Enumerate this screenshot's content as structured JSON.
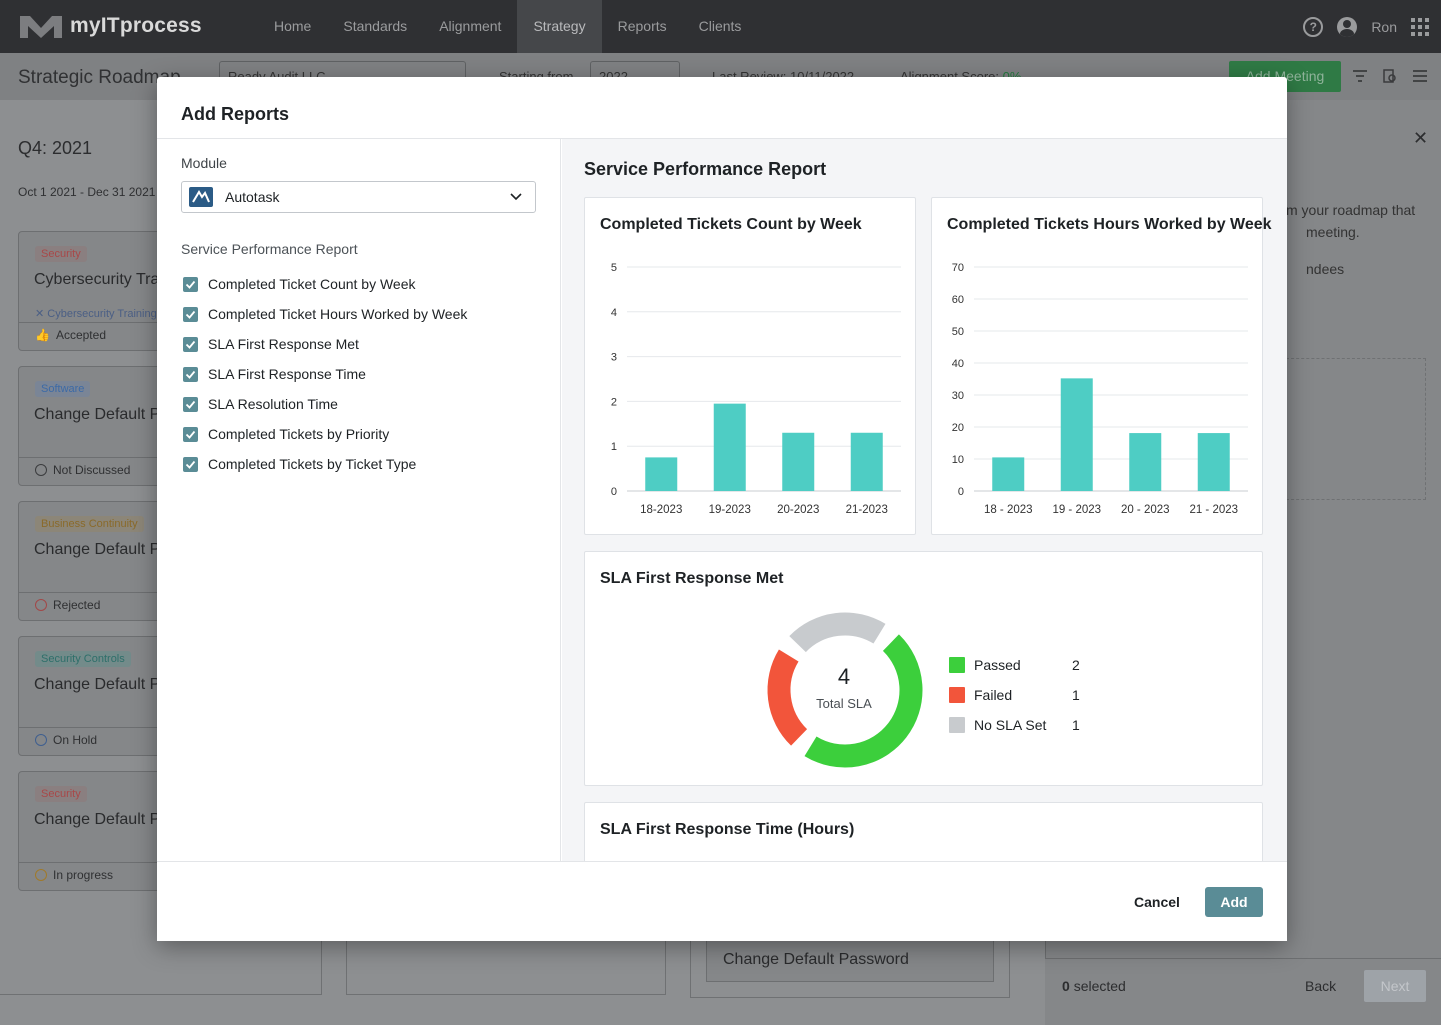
{
  "app": {
    "logo_text": "myITprocess",
    "nav": [
      "Home",
      "Standards",
      "Alignment",
      "Strategy",
      "Reports",
      "Clients"
    ],
    "active_nav": "Strategy",
    "user_name": "Ron"
  },
  "subheader": {
    "title": "Strategic Roadmap",
    "client": "Ready Audit LLC",
    "starting_from_label": "Starting from",
    "starting_from": "2022",
    "last_review": "Last Review: 10/11/2022",
    "alignment_label": "Alignment Score:",
    "alignment_value": "0%",
    "add_meeting": "Add Meeting"
  },
  "board": {
    "quarter": "Q4: 2021",
    "date_range": "Oct 1 2021 - Dec 31 2021",
    "cards": [
      {
        "tag": "Security",
        "tag_color": "#b55a5a",
        "title": "Cybersecurity Training",
        "sub": "Cybersecurity Training",
        "status": "Accepted",
        "status_color": "#4b6a9c"
      },
      {
        "tag": "Software",
        "tag_color": "#4e7ab0",
        "title": "Change Default Password",
        "sub": "",
        "status": "Not Discussed",
        "status_color": "#3b3c3e"
      },
      {
        "tag": "Business Continuity",
        "tag_color": "#9b7d3b",
        "title": "Change Default Password",
        "sub": "",
        "status": "Rejected",
        "status_color": "#a24848"
      },
      {
        "tag": "Security Controls",
        "tag_color": "#3b8a86",
        "title": "Change Default Password",
        "sub": "",
        "status": "On Hold",
        "status_color": "#3f5f8f"
      },
      {
        "tag": "Security",
        "tag_color": "#b55a5a",
        "title": "Change Default Password",
        "sub": "",
        "status": "In progress",
        "status_color": "#a07a2a"
      }
    ],
    "bottom_card": "Change Default Password"
  },
  "side_panel": {
    "text1": "m your roadmap that",
    "text2": "meeting.",
    "text3": "ndees",
    "selected": "0 selected",
    "selected_count": "0",
    "selected_word": "selected",
    "back": "Back",
    "next": "Next"
  },
  "modal": {
    "title": "Add Reports",
    "module_label": "Module",
    "module_value": "Autotask",
    "section_label": "Service Performance Report",
    "checks": [
      "Completed Ticket Count by Week",
      "Completed Ticket Hours Worked by Week",
      "SLA First Response Met",
      "SLA First Response Time",
      "SLA Resolution Time",
      "Completed Tickets by Priority",
      "Completed Tickets by Ticket Type"
    ],
    "preview_title": "Service Performance Report",
    "cancel": "Cancel",
    "add": "Add"
  },
  "chart_data": [
    {
      "type": "bar",
      "title": "Completed Tickets Count by Week",
      "categories": [
        "18-2023",
        "19-2023",
        "20-2023",
        "21-2023"
      ],
      "values": [
        0.75,
        1.95,
        1.3,
        1.3
      ],
      "ylim": [
        0,
        5
      ],
      "yticks": [
        0,
        1,
        2,
        3,
        4,
        5
      ],
      "color": "#4ecdc4",
      "grid": true
    },
    {
      "type": "bar",
      "title": "Completed Tickets Hours Worked by Week",
      "categories": [
        "18 - 2023",
        "19 - 2023",
        "20 - 2023",
        "21 - 2023"
      ],
      "values": [
        10.5,
        35.2,
        18.1,
        18.1
      ],
      "ylim": [
        0,
        70
      ],
      "yticks": [
        0,
        10,
        20,
        30,
        40,
        50,
        60,
        70
      ],
      "color": "#4ecdc4",
      "grid": true
    },
    {
      "type": "pie",
      "title": "SLA First Response Met",
      "center_value": "4",
      "center_label": "Total SLA",
      "slices": [
        {
          "label": "Passed",
          "value": 2,
          "color": "#3ccf3c"
        },
        {
          "label": "Failed",
          "value": 1,
          "color": "#f2553b"
        },
        {
          "label": "No SLA Set",
          "value": 1,
          "color": "#c8cbce"
        }
      ]
    },
    {
      "type": "bar",
      "title": "SLA First Response Time (Hours)"
    }
  ]
}
